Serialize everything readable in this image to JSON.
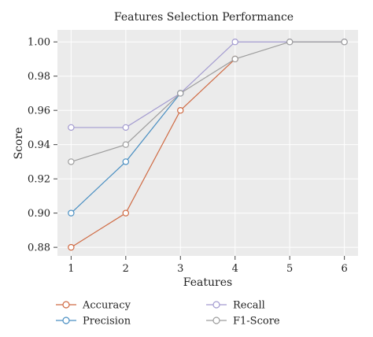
{
  "chart_data": {
    "type": "line",
    "title": "Features Selection Performance",
    "xlabel": "Features",
    "ylabel": "Score",
    "x": [
      1,
      2,
      3,
      4,
      5,
      6
    ],
    "xlim": [
      0.75,
      6.25
    ],
    "ylim": [
      0.875,
      1.007
    ],
    "xticks": [
      "1",
      "2",
      "3",
      "4",
      "5",
      "6"
    ],
    "yticks": [
      "0.88",
      "0.90",
      "0.92",
      "0.94",
      "0.96",
      "0.98",
      "1.00"
    ],
    "ytick_values": [
      0.88,
      0.9,
      0.92,
      0.94,
      0.96,
      0.98,
      1.0
    ],
    "grid": true,
    "legend_position": "bottom",
    "series": [
      {
        "name": "Accuracy",
        "color": "#cf6a43",
        "x": [
          1,
          2,
          3,
          4
        ],
        "values": [
          0.88,
          0.9,
          0.96,
          0.99
        ]
      },
      {
        "name": "Recall",
        "color": "#a39bd0",
        "x": [
          1,
          2,
          3,
          4,
          5,
          6
        ],
        "values": [
          0.95,
          0.95,
          0.97,
          1.0,
          1.0,
          1.0
        ]
      },
      {
        "name": "Precision",
        "color": "#4a8fc2",
        "x": [
          1,
          2,
          3
        ],
        "values": [
          0.9,
          0.93,
          0.97
        ]
      },
      {
        "name": "F1-Score",
        "color": "#9d9d9d",
        "x": [
          1,
          2,
          3,
          4,
          5,
          6
        ],
        "values": [
          0.93,
          0.94,
          0.97,
          0.99,
          1.0,
          1.0
        ]
      }
    ],
    "colors": {
      "plot_background": "#ebebeb",
      "grid": "#ffffff"
    }
  }
}
